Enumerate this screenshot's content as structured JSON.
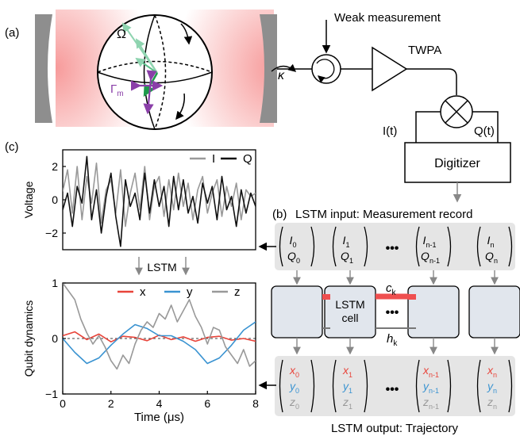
{
  "panel_a": {
    "label": "(a)",
    "omega": "Ω",
    "gamma": "Γ",
    "gamma_sub": "m",
    "kappa": "κ",
    "weak_measurement": "Weak measurement",
    "twpa": "TWPA",
    "i_t": "I(t)",
    "q_t": "Q(t)",
    "digitizer": "Digitizer"
  },
  "panel_b": {
    "label": "(b)",
    "input_title": "LSTM input: Measurement record",
    "output_title": "LSTM output: Trajectory",
    "inputs": [
      {
        "i": "I",
        "i_sub": "0",
        "q": "Q",
        "q_sub": "0"
      },
      {
        "i": "I",
        "i_sub": "1",
        "q": "Q",
        "q_sub": "1"
      },
      {
        "i": "I",
        "i_sub": "n-1",
        "q": "Q",
        "q_sub": "n-1"
      },
      {
        "i": "I",
        "i_sub": "n",
        "q": "Q",
        "q_sub": "n"
      }
    ],
    "outputs": [
      {
        "x": "x",
        "y": "y",
        "z": "z",
        "sub": "0"
      },
      {
        "x": "x",
        "y": "y",
        "z": "z",
        "sub": "1"
      },
      {
        "x": "x",
        "y": "y",
        "z": "z",
        "sub": "n-1"
      },
      {
        "x": "x",
        "y": "y",
        "z": "z",
        "sub": "n"
      }
    ],
    "ellipsis": "•••",
    "cell_label_line1": "LSTM",
    "cell_label_line2": "cell",
    "c_label": "c",
    "c_sub": "k",
    "h_label": "h",
    "h_sub": "k"
  },
  "panel_c": {
    "label": "(c)",
    "lstm_arrow_label": "LSTM",
    "top_chart": {
      "ylabel": "Voltage",
      "legend": [
        "I",
        "Q"
      ],
      "yticks": [
        "2",
        "0",
        "−2"
      ]
    },
    "bottom_chart": {
      "ylabel": "Qubit dynamics",
      "xlabel": "Time (μs)",
      "legend": [
        "x",
        "y",
        "z"
      ],
      "yticks": [
        "1",
        "0",
        "−1"
      ],
      "xticks": [
        "0",
        "2",
        "4",
        "6",
        "8"
      ]
    }
  },
  "colors": {
    "x": "#e8443a",
    "y": "#3a93d1",
    "z": "#999999",
    "I": "#999999",
    "Q": "#111111",
    "arrow_green_light": "#8fd4b0",
    "arrow_green_dark": "#1e9a4a",
    "gamma_purple": "#8a3fa8",
    "cavity_glow": "#f04848",
    "box_fill": "#e5e5e5",
    "cell_fill": "#e1e6ed",
    "c_bar": "#ef4f4f"
  },
  "chart_data": [
    {
      "type": "line",
      "title": "",
      "xlabel": "",
      "ylabel": "Voltage",
      "xlim": [
        0,
        8
      ],
      "ylim": [
        -3,
        3
      ],
      "yticks": [
        2,
        0,
        -2
      ],
      "legend_position": "top-right",
      "series": [
        {
          "name": "I",
          "x": [
            0,
            0.2,
            0.4,
            0.6,
            0.8,
            1,
            1.2,
            1.4,
            1.6,
            1.8,
            2,
            2.2,
            2.4,
            2.6,
            2.8,
            3,
            3.2,
            3.4,
            3.6,
            3.8,
            4,
            4.2,
            4.4,
            4.6,
            4.8,
            5,
            5.2,
            5.4,
            5.6,
            5.8,
            6,
            6.2,
            6.4,
            6.6,
            6.8,
            7,
            7.2,
            7.4,
            7.6,
            7.8,
            8
          ],
          "y": [
            0.5,
            1.8,
            -0.8,
            2.0,
            -1.2,
            1.4,
            -0.2,
            2.2,
            -1.4,
            0.6,
            1.2,
            -0.8,
            1.8,
            -1.6,
            0.4,
            1.6,
            -0.6,
            2.0,
            -1.2,
            0.8,
            1.4,
            -1.0,
            1.2,
            -0.6,
            1.6,
            -0.4,
            1.0,
            -1.2,
            0.6,
            1.4,
            -0.8,
            0.4,
            1.2,
            -1.0,
            0.8,
            -0.4,
            1.0,
            -1.2,
            0.6,
            0.2,
            0.4
          ]
        },
        {
          "name": "Q",
          "x": [
            0,
            0.2,
            0.4,
            0.6,
            0.8,
            1,
            1.2,
            1.4,
            1.6,
            1.8,
            2,
            2.2,
            2.4,
            2.6,
            2.8,
            3,
            3.2,
            3.4,
            3.6,
            3.8,
            4,
            4.2,
            4.4,
            4.6,
            4.8,
            5,
            5.2,
            5.4,
            5.6,
            5.8,
            6,
            6.2,
            6.4,
            6.6,
            6.8,
            7,
            7.2,
            7.4,
            7.6,
            7.8,
            8
          ],
          "y": [
            -0.6,
            0.4,
            -1.6,
            0.8,
            -0.2,
            2.6,
            -1.2,
            0.6,
            -2.0,
            0.2,
            1.6,
            -1.0,
            -2.8,
            1.2,
            -0.4,
            0.4,
            -1.2,
            1.6,
            -0.8,
            1.2,
            -0.4,
            0.8,
            -1.6,
            1.4,
            -0.6,
            1.2,
            -0.8,
            0.2,
            -1.4,
            1.0,
            -0.2,
            0.8,
            -1.2,
            1.4,
            -0.6,
            0.2,
            -1.6,
            0.6,
            -0.8,
            0.4,
            -0.4
          ]
        }
      ]
    },
    {
      "type": "line",
      "title": "",
      "xlabel": "Time (μs)",
      "ylabel": "Qubit dynamics",
      "xlim": [
        0,
        8
      ],
      "ylim": [
        -1,
        1
      ],
      "xticks": [
        0,
        2,
        4,
        6,
        8
      ],
      "yticks": [
        1,
        0,
        -1
      ],
      "legend_position": "top",
      "series": [
        {
          "name": "x",
          "x": [
            0,
            0.5,
            1,
            1.5,
            2,
            2.5,
            3,
            3.5,
            4,
            4.5,
            5,
            5.5,
            6,
            6.5,
            7,
            7.5,
            8
          ],
          "y": [
            0.05,
            0.12,
            -0.02,
            0.08,
            -0.06,
            0.04,
            0.02,
            -0.04,
            0.06,
            -0.02,
            0.03,
            -0.05,
            0.02,
            0.04,
            -0.03,
            0.0,
            -0.05
          ]
        },
        {
          "name": "y",
          "x": [
            0,
            0.5,
            1,
            1.5,
            2,
            2.5,
            3,
            3.5,
            4,
            4.5,
            5,
            5.5,
            6,
            6.5,
            7,
            7.5,
            8
          ],
          "y": [
            0.0,
            -0.25,
            -0.45,
            -0.35,
            -0.12,
            0.08,
            0.25,
            0.18,
            0.05,
            0.05,
            -0.05,
            -0.2,
            -0.45,
            -0.35,
            -0.12,
            0.15,
            0.3
          ]
        },
        {
          "name": "z",
          "x": [
            0,
            0.25,
            0.5,
            0.75,
            1,
            1.25,
            1.5,
            1.75,
            2,
            2.25,
            2.5,
            2.75,
            3,
            3.25,
            3.5,
            3.75,
            4,
            4.25,
            4.5,
            4.75,
            5,
            5.25,
            5.5,
            5.75,
            6,
            6.25,
            6.5,
            6.75,
            7,
            7.25,
            7.5,
            7.75,
            8
          ],
          "y": [
            1.0,
            0.85,
            0.7,
            0.35,
            0.1,
            -0.1,
            0.05,
            -0.15,
            -0.4,
            -0.55,
            -0.3,
            -0.45,
            -0.1,
            0.15,
            0.3,
            0.2,
            0.45,
            0.35,
            0.6,
            0.3,
            0.5,
            0.7,
            0.4,
            0.2,
            -0.1,
            0.2,
            0.15,
            -0.15,
            -0.3,
            -0.45,
            -0.2,
            -0.5,
            -0.4
          ]
        }
      ]
    }
  ]
}
